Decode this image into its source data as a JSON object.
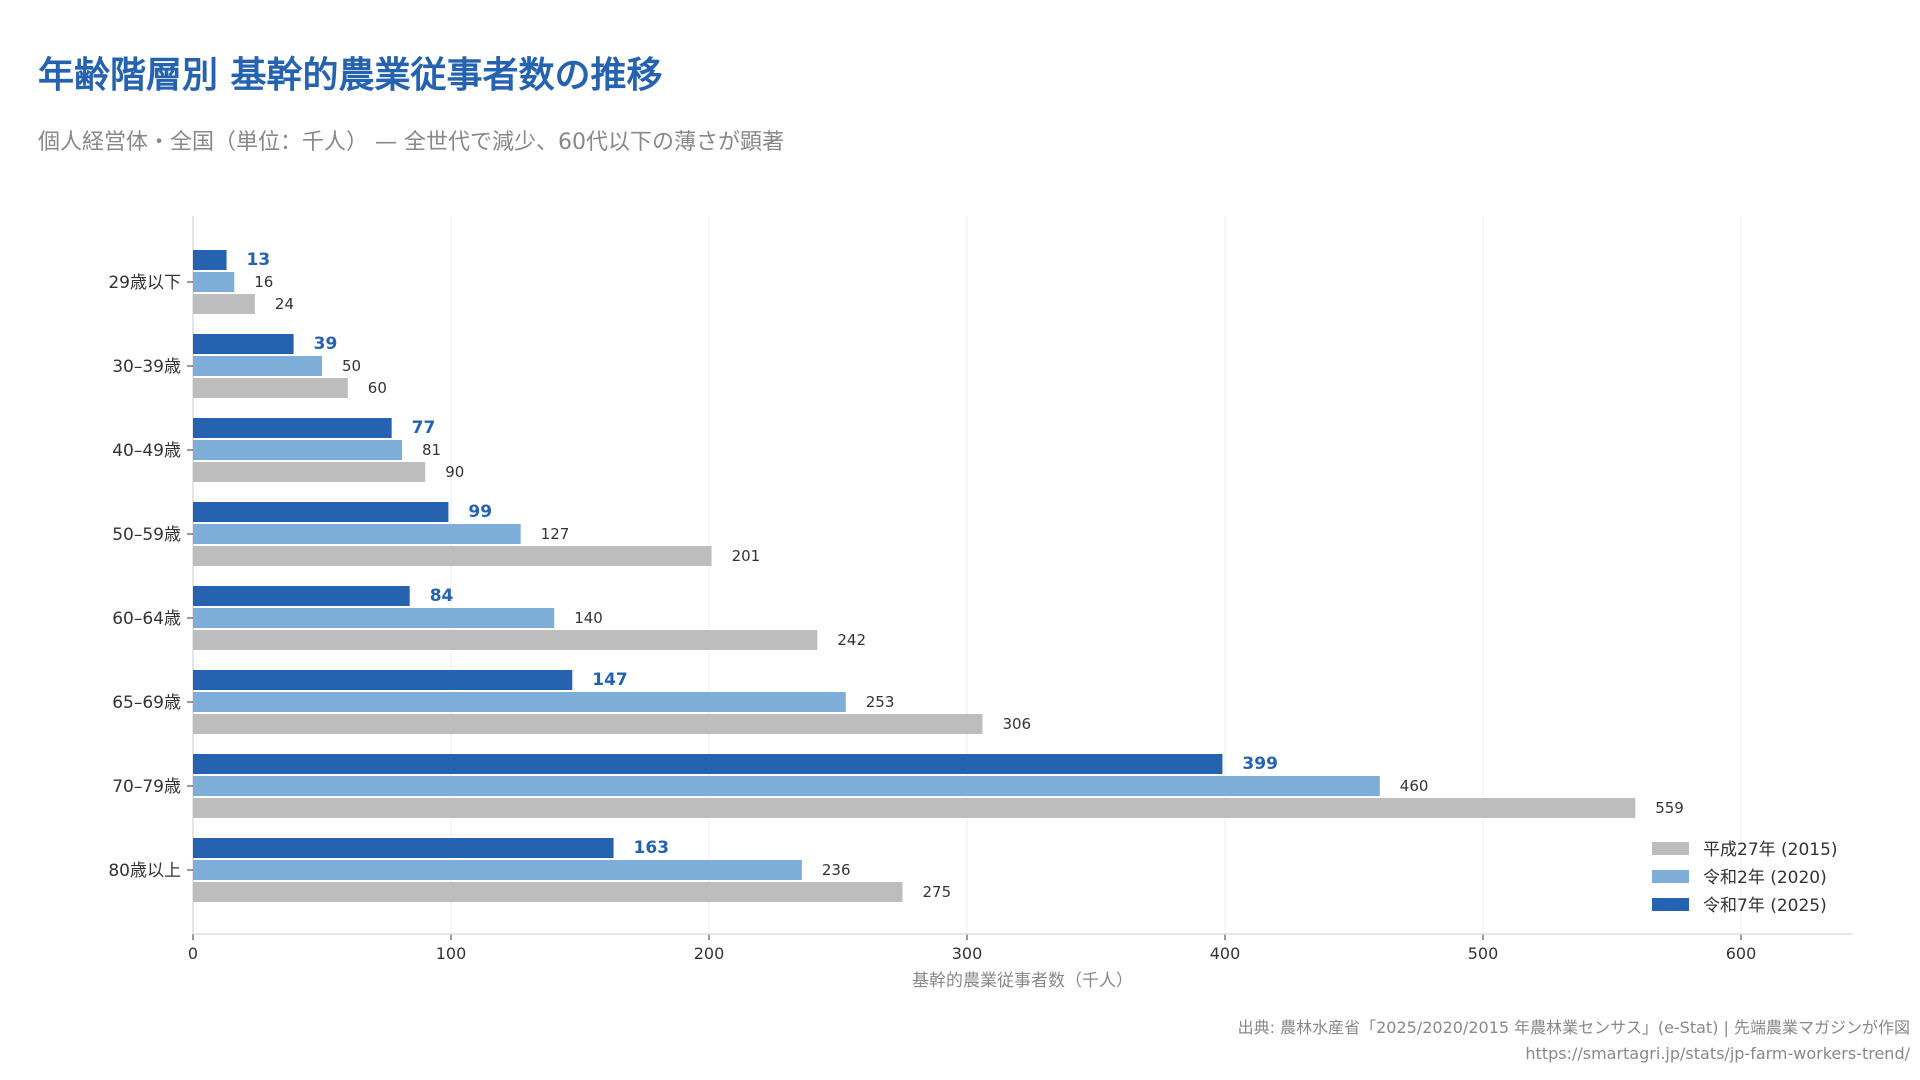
{
  "title": "年齢階層別 基幹的農業従事者数の推移",
  "subtitle": "個人経営体・全国（単位：千人） — 全世代で減少、60代以下の薄さが顕著",
  "source": {
    "line1": "出典: 農林水産省「2025/2020/2015 年農林業センサス」(e-Stat) | 先端農業マガジンが作図",
    "line2": "https://smartagri.jp/stats/jp-farm-workers-trend/"
  },
  "chart_data": {
    "type": "bar",
    "orientation": "horizontal",
    "xlabel": "基幹的農業従事者数（千人）",
    "xlim": [
      0,
      640
    ],
    "xticks": [
      0,
      100,
      200,
      300,
      400,
      500,
      600
    ],
    "grid": true,
    "legend_position": "bottom-right",
    "categories": [
      "29歳以下",
      "30–39歳",
      "40–49歳",
      "50–59歳",
      "60–64歳",
      "65–69歳",
      "70–79歳",
      "80歳以上"
    ],
    "series": [
      {
        "name": "令和7年 (2025)",
        "color": "#2563b0",
        "label_color": "#2563b0",
        "bold": true,
        "values": [
          13,
          39,
          77,
          99,
          84,
          147,
          399,
          163
        ]
      },
      {
        "name": "令和2年 (2020)",
        "color": "#7eadd8",
        "label_color": "#333333",
        "bold": false,
        "values": [
          16,
          50,
          81,
          127,
          140,
          253,
          460,
          236
        ]
      },
      {
        "name": "平成27年 (2015)",
        "color": "#bdbdbd",
        "label_color": "#333333",
        "bold": false,
        "values": [
          24,
          60,
          90,
          201,
          242,
          306,
          559,
          275
        ]
      }
    ],
    "legend_order": [
      "平成27年 (2015)",
      "令和2年 (2020)",
      "令和7年 (2025)"
    ]
  }
}
